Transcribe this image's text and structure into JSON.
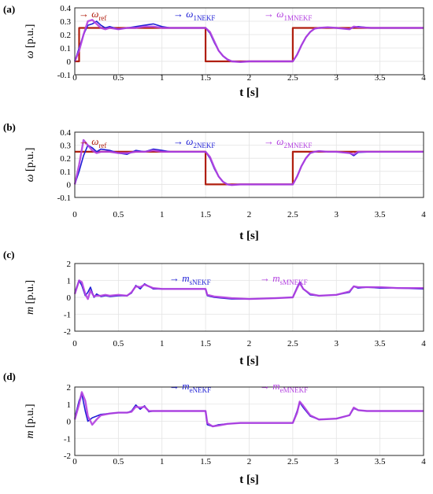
{
  "chart_data": [
    {
      "type": "line",
      "panel_label": "(a)",
      "xlabel": "t [s]",
      "ylabel_sym": "ω",
      "ylabel_unit": " [p.u.]",
      "xlim": [
        0,
        4
      ],
      "ylim": [
        -0.1,
        0.4
      ],
      "xticks": [
        "0",
        "0.5",
        "1",
        "1.5",
        "2",
        "2.5",
        "3",
        "3.5",
        "4"
      ],
      "yticks": [
        "-0.1",
        "0",
        "0.1",
        "0.2",
        "0.3",
        "0.4"
      ],
      "grid": true,
      "legend_position": "top",
      "series": [
        {
          "name_sym": "ω",
          "name_sub": "ref",
          "color": "#b01e0e",
          "width": 2.2,
          "x": [
            0,
            0.05,
            0.05,
            1.5,
            1.5,
            2.5,
            2.5,
            4
          ],
          "y": [
            0,
            0,
            0.25,
            0.25,
            0,
            0,
            0.25,
            0.25
          ]
        },
        {
          "name_sym": "ω",
          "name_sub": "1NEKF",
          "color": "#1f1fd6",
          "width": 1.6,
          "x": [
            0,
            0.05,
            0.1,
            0.15,
            0.2,
            0.25,
            0.3,
            0.35,
            0.4,
            0.5,
            0.6,
            0.7,
            0.8,
            0.9,
            1.0,
            1.1,
            1.3,
            1.5,
            1.55,
            1.6,
            1.65,
            1.7,
            1.75,
            1.8,
            1.9,
            2.0,
            2.2,
            2.5,
            2.55,
            2.6,
            2.65,
            2.7,
            2.75,
            2.8,
            2.9,
            3.0,
            3.15,
            3.2,
            3.25,
            3.4,
            3.6,
            4.0
          ],
          "y": [
            0,
            0.1,
            0.2,
            0.27,
            0.28,
            0.3,
            0.27,
            0.25,
            0.26,
            0.24,
            0.25,
            0.26,
            0.27,
            0.28,
            0.26,
            0.25,
            0.25,
            0.25,
            0.21,
            0.14,
            0.08,
            0.04,
            0.015,
            0.0,
            -0.005,
            0.0,
            0.0,
            0.0,
            0.05,
            0.12,
            0.18,
            0.22,
            0.245,
            0.25,
            0.255,
            0.25,
            0.24,
            0.255,
            0.26,
            0.25,
            0.25,
            0.25
          ]
        },
        {
          "name_sym": "ω",
          "name_sub": "1MNEKF",
          "color": "#b340e0",
          "width": 2.4,
          "x": [
            0,
            0.05,
            0.1,
            0.15,
            0.2,
            0.25,
            0.3,
            0.35,
            0.4,
            0.5,
            0.6,
            0.7,
            0.8,
            0.9,
            1.0,
            1.1,
            1.3,
            1.5,
            1.55,
            1.6,
            1.65,
            1.7,
            1.75,
            1.8,
            1.9,
            2.0,
            2.2,
            2.5,
            2.55,
            2.6,
            2.65,
            2.7,
            2.75,
            2.8,
            2.9,
            3.0,
            3.15,
            3.2,
            3.25,
            3.4,
            3.6,
            4.0
          ],
          "y": [
            0,
            0.08,
            0.2,
            0.3,
            0.31,
            0.28,
            0.25,
            0.24,
            0.25,
            0.24,
            0.25,
            0.25,
            0.26,
            0.26,
            0.25,
            0.25,
            0.25,
            0.25,
            0.22,
            0.15,
            0.08,
            0.04,
            0.015,
            0.0,
            -0.005,
            0.0,
            0.0,
            0.0,
            0.05,
            0.12,
            0.18,
            0.22,
            0.245,
            0.25,
            0.255,
            0.25,
            0.24,
            0.26,
            0.255,
            0.25,
            0.25,
            0.25
          ]
        }
      ]
    },
    {
      "type": "line",
      "panel_label": "(b)",
      "xlabel": "t [s]",
      "ylabel_sym": "ω",
      "ylabel_unit": " [p.u.]",
      "xlim": [
        0,
        4
      ],
      "ylim": [
        -0.1,
        0.4
      ],
      "xticks": [
        "0",
        "0.5",
        "1",
        "1.5",
        "2",
        "2.5",
        "3",
        "3.5",
        "4"
      ],
      "yticks": [
        "-0.1",
        "0",
        "0.1",
        "0.2",
        "0.3",
        "0.4"
      ],
      "grid": true,
      "legend_position": "top",
      "series": [
        {
          "name_sym": "ω",
          "name_sub": "ref",
          "color": "#b01e0e",
          "width": 2.2,
          "x": [
            0,
            0.05,
            0.05,
            1.5,
            1.5,
            2.5,
            2.5,
            4
          ],
          "y": [
            0.25,
            0.25,
            0.25,
            0.25,
            0,
            0,
            0.25,
            0.25
          ]
        },
        {
          "name_sym": "ω",
          "name_sub": "2NEKF",
          "color": "#1f1fd6",
          "width": 1.6,
          "x": [
            0,
            0.05,
            0.1,
            0.15,
            0.2,
            0.25,
            0.3,
            0.4,
            0.5,
            0.6,
            0.7,
            0.8,
            0.9,
            1.0,
            1.1,
            1.3,
            1.5,
            1.55,
            1.6,
            1.65,
            1.7,
            1.75,
            1.8,
            1.9,
            2.0,
            2.2,
            2.5,
            2.55,
            2.6,
            2.65,
            2.7,
            2.75,
            2.8,
            2.9,
            3.0,
            3.15,
            3.2,
            3.25,
            3.4,
            3.6,
            4.0
          ],
          "y": [
            0,
            0.1,
            0.22,
            0.3,
            0.28,
            0.25,
            0.27,
            0.26,
            0.24,
            0.23,
            0.26,
            0.25,
            0.27,
            0.26,
            0.25,
            0.25,
            0.25,
            0.2,
            0.12,
            0.06,
            0.02,
            0.0,
            -0.005,
            0.0,
            0.0,
            0.0,
            0.0,
            0.06,
            0.14,
            0.2,
            0.24,
            0.25,
            0.255,
            0.25,
            0.25,
            0.24,
            0.22,
            0.245,
            0.25,
            0.25,
            0.25
          ]
        },
        {
          "name_sym": "ω",
          "name_sub": "2MNEKF",
          "color": "#b340e0",
          "width": 2.4,
          "x": [
            0,
            0.05,
            0.1,
            0.15,
            0.2,
            0.25,
            0.3,
            0.4,
            0.5,
            0.6,
            0.7,
            0.8,
            0.9,
            1.0,
            1.1,
            1.3,
            1.5,
            1.55,
            1.6,
            1.65,
            1.7,
            1.75,
            1.8,
            1.9,
            2.0,
            2.2,
            2.5,
            2.55,
            2.6,
            2.65,
            2.7,
            2.75,
            2.8,
            2.9,
            3.0,
            3.15,
            3.2,
            3.25,
            3.4,
            3.6,
            4.0
          ],
          "y": [
            0,
            0.15,
            0.34,
            0.3,
            0.26,
            0.24,
            0.25,
            0.25,
            0.24,
            0.24,
            0.25,
            0.25,
            0.26,
            0.25,
            0.25,
            0.25,
            0.25,
            0.21,
            0.13,
            0.06,
            0.02,
            0.0,
            -0.005,
            0.0,
            0.0,
            0.0,
            0.0,
            0.06,
            0.14,
            0.2,
            0.24,
            0.25,
            0.255,
            0.25,
            0.25,
            0.24,
            0.23,
            0.25,
            0.25,
            0.25,
            0.25
          ]
        }
      ]
    },
    {
      "type": "line",
      "panel_label": "(c)",
      "xlabel": "t [s]",
      "ylabel_sym": "m",
      "ylabel_unit": " [p.u.]",
      "xlim": [
        0,
        4
      ],
      "ylim": [
        -2,
        2
      ],
      "xticks": [
        "0",
        "0.5",
        "1",
        "1.5",
        "2",
        "2.5",
        "3",
        "3.5",
        "4"
      ],
      "yticks": [
        "-2",
        "-1",
        "0",
        "1",
        "2"
      ],
      "grid": true,
      "legend_position": "top",
      "series": [
        {
          "name_sym": "m",
          "name_sub": "sNEKF",
          "color": "#1f1fd6",
          "width": 1.6,
          "x": [
            0,
            0.05,
            0.08,
            0.12,
            0.15,
            0.18,
            0.22,
            0.25,
            0.3,
            0.35,
            0.4,
            0.5,
            0.6,
            0.65,
            0.7,
            0.75,
            0.8,
            0.9,
            1.0,
            1.2,
            1.5,
            1.52,
            1.6,
            1.7,
            1.8,
            2.0,
            2.3,
            2.5,
            2.55,
            2.58,
            2.62,
            2.7,
            2.8,
            3.0,
            3.15,
            3.2,
            3.25,
            3.35,
            3.5,
            3.7,
            4.0
          ],
          "y": [
            0.3,
            1.0,
            0.7,
            0.1,
            0.3,
            0.6,
            0.0,
            0.2,
            0.05,
            0.1,
            0.05,
            0.1,
            0.1,
            0.25,
            0.7,
            0.5,
            0.8,
            0.5,
            0.5,
            0.5,
            0.5,
            0.1,
            0.0,
            -0.05,
            -0.1,
            -0.1,
            -0.05,
            0.0,
            0.6,
            0.9,
            0.5,
            0.15,
            0.1,
            0.15,
            0.3,
            0.65,
            0.55,
            0.6,
            0.55,
            0.55,
            0.5
          ]
        },
        {
          "name_sym": "m",
          "name_sub": "sMNEKF",
          "color": "#b340e0",
          "width": 2.4,
          "x": [
            0,
            0.05,
            0.08,
            0.12,
            0.15,
            0.18,
            0.22,
            0.25,
            0.3,
            0.35,
            0.4,
            0.5,
            0.6,
            0.65,
            0.7,
            0.75,
            0.8,
            0.9,
            1.0,
            1.2,
            1.5,
            1.52,
            1.6,
            1.7,
            1.8,
            2.0,
            2.3,
            2.5,
            2.55,
            2.58,
            2.62,
            2.7,
            2.8,
            3.0,
            3.15,
            3.2,
            3.25,
            3.35,
            3.5,
            3.7,
            4.0
          ],
          "y": [
            0.2,
            1.0,
            0.9,
            0.2,
            -0.1,
            0.4,
            0.05,
            0.1,
            0.1,
            0.15,
            0.1,
            0.15,
            0.1,
            0.3,
            0.65,
            0.6,
            0.75,
            0.55,
            0.5,
            0.5,
            0.5,
            0.15,
            0.05,
            0.0,
            -0.05,
            -0.1,
            -0.05,
            0.0,
            0.55,
            0.85,
            0.5,
            0.2,
            0.1,
            0.15,
            0.35,
            0.65,
            0.6,
            0.6,
            0.6,
            0.55,
            0.55
          ]
        }
      ]
    },
    {
      "type": "line",
      "panel_label": "(d)",
      "xlabel": "t [s]",
      "ylabel_sym": "m",
      "ylabel_unit": " [p.u.]",
      "xlim": [
        0,
        4
      ],
      "ylim": [
        -2,
        2
      ],
      "xticks": [
        "0",
        "0.5",
        "1",
        "1.5",
        "2",
        "2.5",
        "3",
        "3.5",
        "4"
      ],
      "yticks": [
        "-2",
        "-1",
        "0",
        "1",
        "2"
      ],
      "grid": true,
      "legend_position": "top",
      "series": [
        {
          "name_sym": "m",
          "name_sub": "eNEKF",
          "color": "#1f1fd6",
          "width": 1.6,
          "x": [
            0,
            0.05,
            0.08,
            0.12,
            0.15,
            0.2,
            0.25,
            0.3,
            0.4,
            0.5,
            0.6,
            0.65,
            0.7,
            0.75,
            0.8,
            0.85,
            0.9,
            1.0,
            1.2,
            1.5,
            1.52,
            1.58,
            1.65,
            1.75,
            1.9,
            2.2,
            2.5,
            2.55,
            2.58,
            2.62,
            2.7,
            2.8,
            3.0,
            3.15,
            3.2,
            3.25,
            3.35,
            3.5,
            3.7,
            4.0
          ],
          "y": [
            0.2,
            1.2,
            1.6,
            0.6,
            0.0,
            0.2,
            0.3,
            0.4,
            0.45,
            0.5,
            0.5,
            0.6,
            0.95,
            0.7,
            0.9,
            0.55,
            0.6,
            0.6,
            0.6,
            0.6,
            -0.2,
            -0.3,
            -0.2,
            -0.15,
            -0.1,
            -0.1,
            -0.1,
            0.6,
            1.1,
            0.8,
            0.3,
            0.1,
            0.15,
            0.35,
            0.75,
            0.65,
            0.6,
            0.6,
            0.6,
            0.6
          ]
        },
        {
          "name_sym": "m",
          "name_sub": "eMNEKF",
          "color": "#b340e0",
          "width": 2.4,
          "x": [
            0,
            0.05,
            0.08,
            0.12,
            0.15,
            0.2,
            0.25,
            0.3,
            0.4,
            0.5,
            0.6,
            0.65,
            0.7,
            0.75,
            0.8,
            0.85,
            0.9,
            1.0,
            1.2,
            1.5,
            1.52,
            1.58,
            1.65,
            1.75,
            1.9,
            2.2,
            2.5,
            2.55,
            2.58,
            2.62,
            2.7,
            2.8,
            3.0,
            3.15,
            3.2,
            3.25,
            3.35,
            3.5,
            3.7,
            4.0
          ],
          "y": [
            0.1,
            1.0,
            1.7,
            1.2,
            0.3,
            -0.2,
            0.1,
            0.35,
            0.45,
            0.5,
            0.5,
            0.55,
            0.85,
            0.8,
            0.85,
            0.6,
            0.6,
            0.6,
            0.6,
            0.6,
            -0.1,
            -0.3,
            -0.25,
            -0.15,
            -0.1,
            -0.1,
            -0.1,
            0.5,
            1.15,
            0.9,
            0.35,
            0.1,
            0.15,
            0.35,
            0.8,
            0.65,
            0.6,
            0.6,
            0.6,
            0.6
          ]
        }
      ]
    }
  ]
}
